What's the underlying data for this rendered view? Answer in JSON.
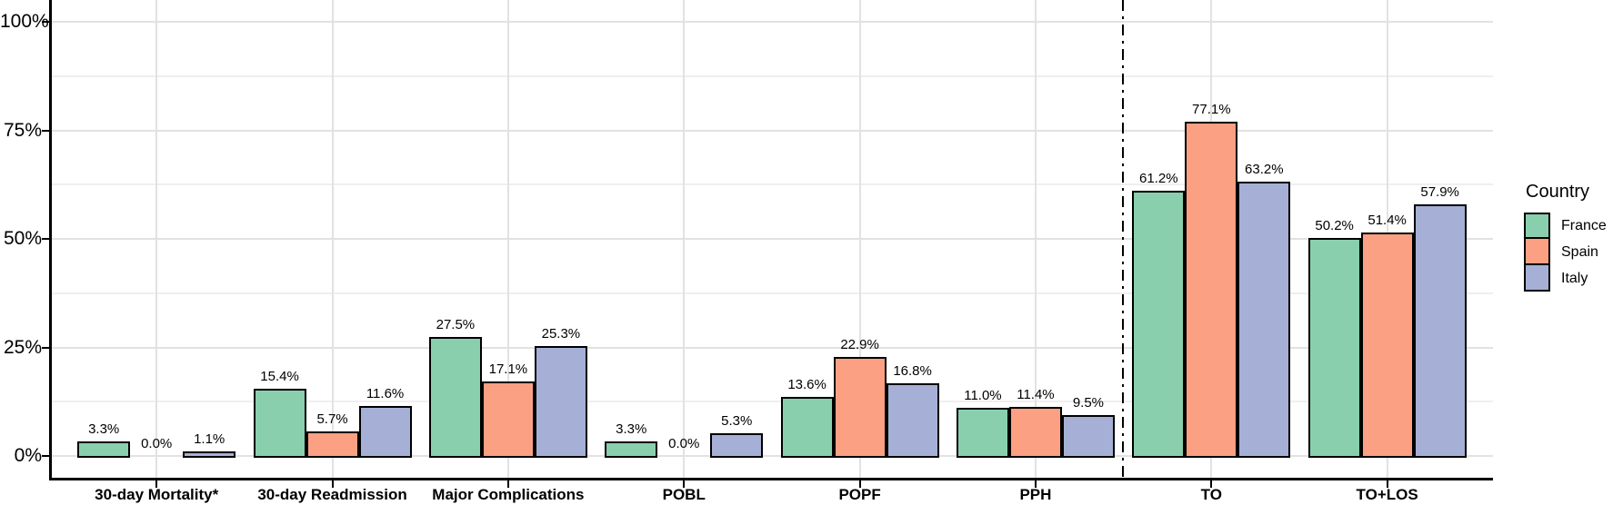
{
  "chart_data": {
    "type": "bar",
    "title": "",
    "xlabel": "",
    "ylabel": "",
    "categories": [
      "30-day Mortality*",
      "30-day Readmission",
      "Major Complications",
      "POBL",
      "POPF",
      "PPH",
      "TO",
      "TO+LOS"
    ],
    "series": [
      {
        "name": "France",
        "color": "#89cfae",
        "values": [
          3.3,
          15.4,
          27.5,
          3.3,
          13.6,
          11.0,
          61.2,
          50.2
        ],
        "value_labels": [
          "3.3%",
          "15.4%",
          "27.5%",
          "3.3%",
          "13.6%",
          "11.0%",
          "61.2%",
          "50.2%"
        ]
      },
      {
        "name": "Spain",
        "color": "#fba083",
        "values": [
          0.0,
          5.7,
          17.1,
          0.0,
          22.9,
          11.4,
          77.1,
          51.4
        ],
        "value_labels": [
          "0.0%",
          "5.7%",
          "17.1%",
          "0.0%",
          "22.9%",
          "11.4%",
          "77.1%",
          "51.4%"
        ]
      },
      {
        "name": "Italy",
        "color": "#a6b0d6",
        "values": [
          1.1,
          11.6,
          25.3,
          5.3,
          16.8,
          9.5,
          63.2,
          57.9
        ],
        "value_labels": [
          "1.1%",
          "11.6%",
          "25.3%",
          "5.3%",
          "16.8%",
          "9.5%",
          "63.2%",
          "57.9%"
        ]
      }
    ],
    "y_axis": {
      "ticks": [
        0,
        25,
        50,
        75,
        100
      ],
      "tick_labels": [
        "0%",
        "25%",
        "50%",
        "75%",
        "100%"
      ],
      "minor_ticks": [
        12.5,
        37.5,
        62.5,
        87.5
      ],
      "ylim": [
        0,
        105
      ]
    },
    "legend": {
      "title": "Country",
      "position": "right"
    },
    "separator": {
      "between": [
        "PPH",
        "TO"
      ],
      "style": "dash-dot",
      "color": "#000000"
    },
    "grid": true,
    "colors": {
      "bar_border": "#000000",
      "grid_major": "#e2e2e2",
      "grid_minor": "#efefef",
      "axis": "#000000",
      "text": "#000000",
      "background": "#ffffff"
    }
  }
}
